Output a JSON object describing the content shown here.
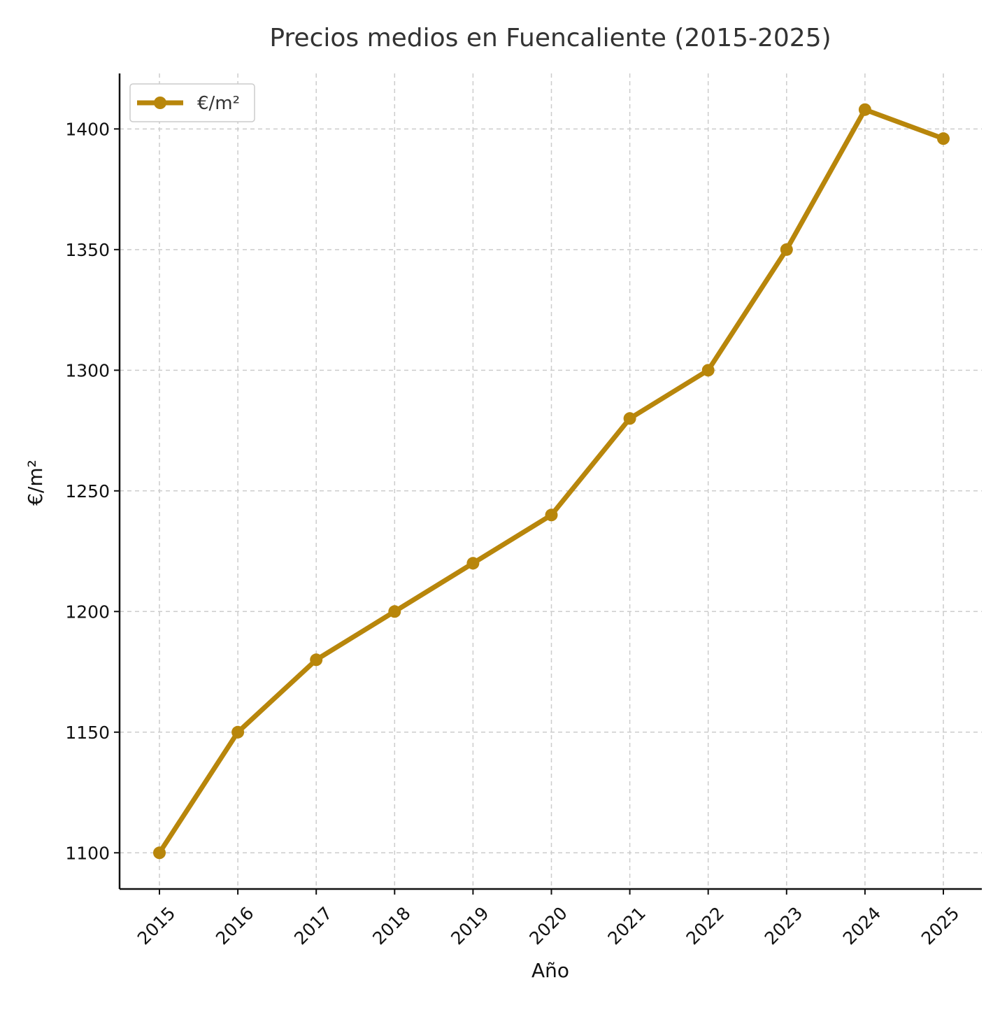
{
  "chart_data": {
    "type": "line",
    "title": "Precios medios en Fuencaliente (2015-2025)",
    "xlabel": "Año",
    "ylabel": "€/m²",
    "x": [
      "2015",
      "2016",
      "2017",
      "2018",
      "2019",
      "2020",
      "2021",
      "2022",
      "2023",
      "2024",
      "2025"
    ],
    "series": [
      {
        "name": "€/m²",
        "values": [
          1100,
          1150,
          1180,
          1200,
          1220,
          1240,
          1280,
          1300,
          1350,
          1408,
          1396
        ],
        "color": "#b8860b",
        "marker": "circle"
      }
    ],
    "yticks": [
      1100,
      1150,
      1200,
      1250,
      1300,
      1350,
      1400
    ],
    "ylim": [
      1085,
      1423
    ],
    "grid": true,
    "grid_style": "dashed",
    "legend_position": "top-left",
    "xtick_rotation": 45
  }
}
